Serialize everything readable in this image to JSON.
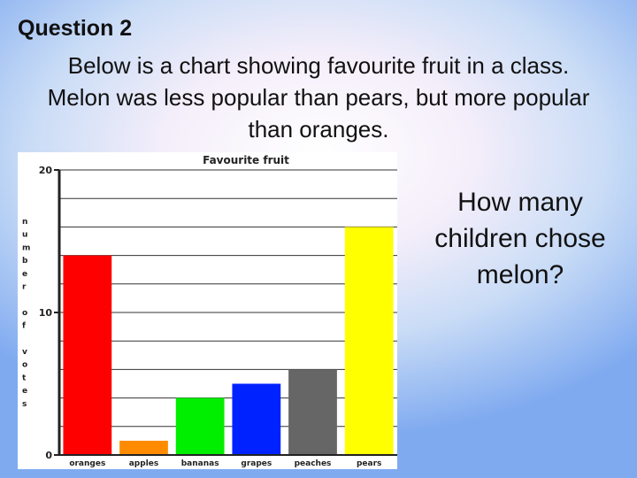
{
  "question": {
    "label": "Question 2",
    "text_lines": [
      "Below is a chart showing favourite fruit in a class.",
      "Melon was less popular than pears, but more popular",
      "than oranges."
    ]
  },
  "ask_lines": [
    "How many",
    "children chose",
    "melon?"
  ],
  "chart_data": {
    "type": "bar",
    "title": "Favourite fruit",
    "ylabel_letters": [
      "n",
      "u",
      "m",
      "b",
      "e",
      "r",
      "",
      "o",
      "f",
      "",
      "v",
      "o",
      "t",
      "e",
      "s"
    ],
    "categories": [
      "oranges",
      "apples",
      "bananas",
      "grapes",
      "peaches",
      "pears"
    ],
    "values": [
      14,
      1,
      4,
      5,
      6,
      16
    ],
    "colors": [
      "#ff0000",
      "#ff8c00",
      "#00ee00",
      "#0022ff",
      "#666666",
      "#ffff00"
    ],
    "yticks": [
      "0",
      "10",
      "20"
    ],
    "ylim": [
      0,
      20
    ],
    "grid": true
  }
}
